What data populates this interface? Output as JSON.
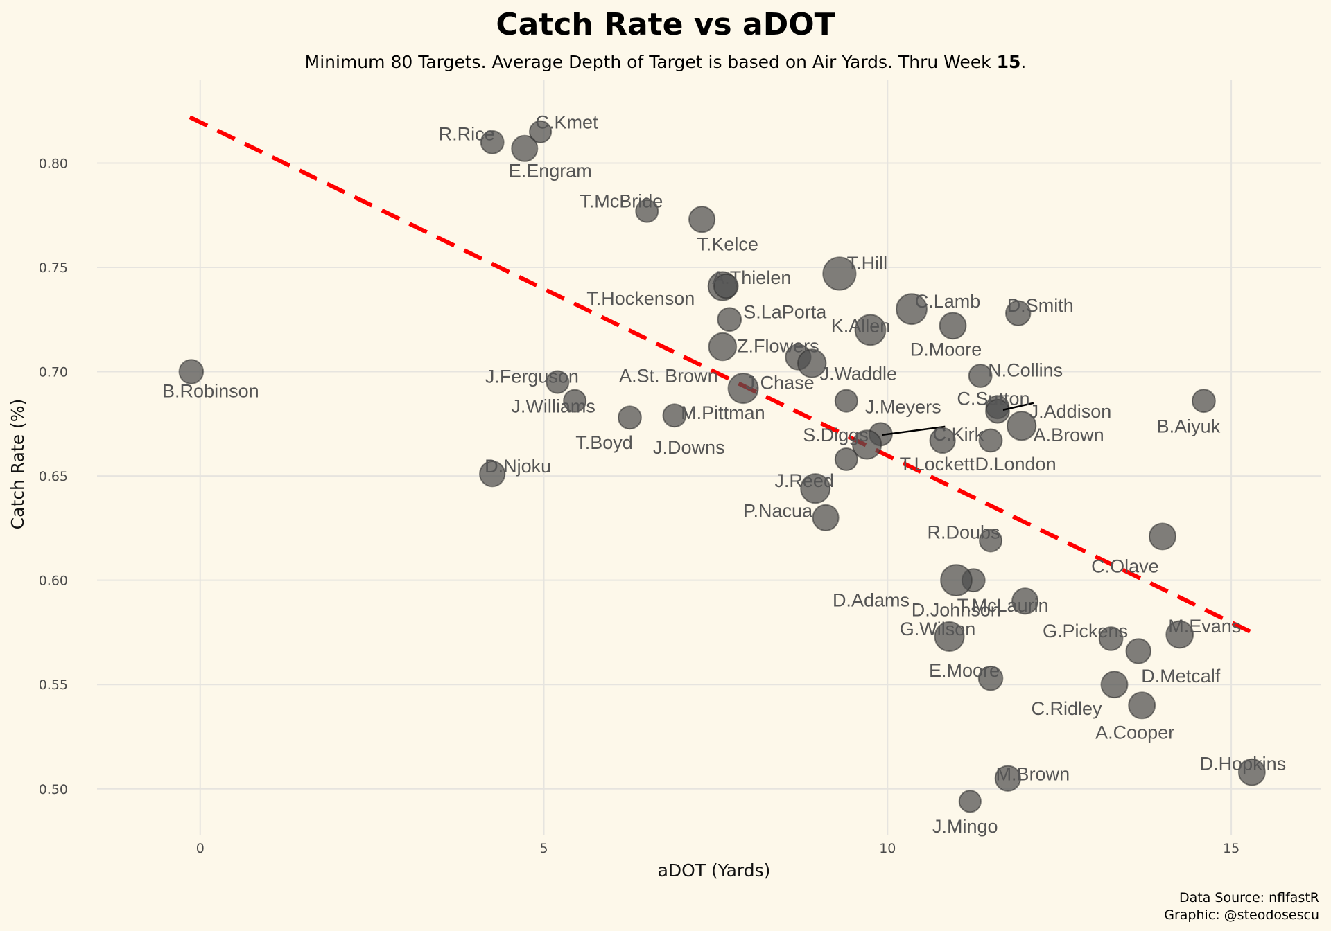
{
  "chart_data": {
    "type": "scatter",
    "title": "Catch Rate vs aDOT",
    "subtitle": "Minimum 80 Targets. Average Depth of Target is based on Air Yards. Thru Week",
    "subtitle_week": "15",
    "subtitle_end": ".",
    "xlabel": "aDOT (Yards)",
    "ylabel": "Catch Rate (%)",
    "xlim": [
      -1.5,
      16.3
    ],
    "ylim": [
      0.478,
      0.84
    ],
    "x_ticks": [
      0,
      5,
      10,
      15
    ],
    "y_ticks": [
      0.5,
      0.55,
      0.6,
      0.65,
      0.7,
      0.75,
      0.8
    ],
    "y_tick_labels": [
      "0.50",
      "0.55",
      "0.60",
      "0.65",
      "0.70",
      "0.75",
      "0.80"
    ],
    "grid": true,
    "point_color": "#4d4d4d",
    "trend_color": "#ff0000",
    "trend_line": {
      "x": [
        -0.15,
        15.3
      ],
      "y": [
        0.822,
        0.575
      ]
    },
    "caption_source": "Data Source: nflfastR",
    "caption_graphic": "Graphic: @steodosescu",
    "points": [
      {
        "name": "B.Robinson",
        "x": -0.13,
        "y": 0.7,
        "size": 1.5
      },
      {
        "name": "R.Rice",
        "x": 4.25,
        "y": 0.81,
        "size": 1.3
      },
      {
        "name": "C.Kmet",
        "x": 4.95,
        "y": 0.815,
        "size": 1.1
      },
      {
        "name": "E.Engram",
        "x": 4.72,
        "y": 0.807,
        "size": 1.8
      },
      {
        "name": "T.McBride",
        "x": 6.5,
        "y": 0.777,
        "size": 1.2
      },
      {
        "name": "T.Kelce",
        "x": 7.3,
        "y": 0.773,
        "size": 1.8
      },
      {
        "name": "A.Thielen",
        "x": 7.6,
        "y": 0.741,
        "size": 2.3
      },
      {
        "name": "T.Hockenson",
        "x": 7.65,
        "y": 0.741,
        "size": 1.5
      },
      {
        "name": "T.Hill",
        "x": 9.3,
        "y": 0.747,
        "size": 3.0
      },
      {
        "name": "S.LaPorta",
        "x": 7.7,
        "y": 0.725,
        "size": 1.4
      },
      {
        "name": "C.Lamb",
        "x": 10.35,
        "y": 0.73,
        "size": 2.6
      },
      {
        "name": "D.Smith",
        "x": 11.9,
        "y": 0.728,
        "size": 1.6
      },
      {
        "name": "K.Allen",
        "x": 9.75,
        "y": 0.72,
        "size": 2.6
      },
      {
        "name": "D.Moore",
        "x": 10.95,
        "y": 0.722,
        "size": 1.9
      },
      {
        "name": "Z.Flowers",
        "x": 7.6,
        "y": 0.712,
        "size": 2.1
      },
      {
        "name": "A.St. Brown",
        "x": 8.7,
        "y": 0.707,
        "size": 1.7
      },
      {
        "name": "J.Waddle",
        "x": 8.9,
        "y": 0.704,
        "size": 2.2
      },
      {
        "name": "J.Chase",
        "x": 7.9,
        "y": 0.692,
        "size": 2.5
      },
      {
        "name": "J.Ferguson",
        "x": 5.2,
        "y": 0.695,
        "size": 1.2
      },
      {
        "name": "J.Williams",
        "x": 5.45,
        "y": 0.686,
        "size": 1.2
      },
      {
        "name": "N.Collins",
        "x": 11.35,
        "y": 0.698,
        "size": 1.3
      },
      {
        "name": "J.Meyers",
        "x": 9.4,
        "y": 0.686,
        "size": 1.2
      },
      {
        "name": "B.Aiyuk",
        "x": 14.6,
        "y": 0.686,
        "size": 1.3
      },
      {
        "name": "C.Sutton",
        "x": 11.6,
        "y": 0.683,
        "size": 1.3
      },
      {
        "name": "J.Addison",
        "x": 11.6,
        "y": 0.681,
        "size": 1.4
      },
      {
        "name": "T.Boyd",
        "x": 6.25,
        "y": 0.678,
        "size": 1.3
      },
      {
        "name": "M.Pittman",
        "x": 6.9,
        "y": 0.679,
        "size": 1.3
      },
      {
        "name": "A.Brown",
        "x": 11.95,
        "y": 0.674,
        "size": 2.3
      },
      {
        "name": "C.Kirk",
        "x": 9.9,
        "y": 0.67,
        "size": 1.3
      },
      {
        "name": "S.Diggs",
        "x": 9.7,
        "y": 0.665,
        "size": 2.3
      },
      {
        "name": "T.Lockett",
        "x": 10.8,
        "y": 0.667,
        "size": 1.7
      },
      {
        "name": "D.London",
        "x": 11.5,
        "y": 0.667,
        "size": 1.3
      },
      {
        "name": "J.Downs",
        "x": 9.4,
        "y": 0.658,
        "size": 1.2
      },
      {
        "name": "D.Njoku",
        "x": 4.25,
        "y": 0.651,
        "size": 1.7
      },
      {
        "name": "J.Reed",
        "x": 8.95,
        "y": 0.644,
        "size": 2.4
      },
      {
        "name": "P.Nacua",
        "x": 9.1,
        "y": 0.63,
        "size": 1.8
      },
      {
        "name": "C.Olave",
        "x": 14.0,
        "y": 0.621,
        "size": 1.9
      },
      {
        "name": "R.Doubs",
        "x": 11.5,
        "y": 0.619,
        "size": 1.2
      },
      {
        "name": "D.Johnson",
        "x": 11.25,
        "y": 0.6,
        "size": 1.3
      },
      {
        "name": "D.Adams",
        "x": 11.0,
        "y": 0.6,
        "size": 2.7
      },
      {
        "name": "T.McLaurin",
        "x": 12.0,
        "y": 0.59,
        "size": 1.8
      },
      {
        "name": "G.Wilson",
        "x": 10.9,
        "y": 0.573,
        "size": 2.4
      },
      {
        "name": "G.Pickens",
        "x": 13.25,
        "y": 0.572,
        "size": 1.4
      },
      {
        "name": "M.Evans",
        "x": 14.25,
        "y": 0.574,
        "size": 2.0
      },
      {
        "name": "D.Metcalf",
        "x": 13.65,
        "y": 0.566,
        "size": 1.6
      },
      {
        "name": "E.Moore",
        "x": 11.5,
        "y": 0.553,
        "size": 1.5
      },
      {
        "name": "C.Ridley",
        "x": 13.3,
        "y": 0.55,
        "size": 1.9
      },
      {
        "name": "A.Cooper",
        "x": 13.7,
        "y": 0.54,
        "size": 1.9
      },
      {
        "name": "D.Hopkins",
        "x": 15.3,
        "y": 0.508,
        "size": 1.9
      },
      {
        "name": "M.Brown",
        "x": 11.75,
        "y": 0.505,
        "size": 1.7
      },
      {
        "name": "J.Mingo",
        "x": 11.2,
        "y": 0.494,
        "size": 1.1
      }
    ]
  }
}
